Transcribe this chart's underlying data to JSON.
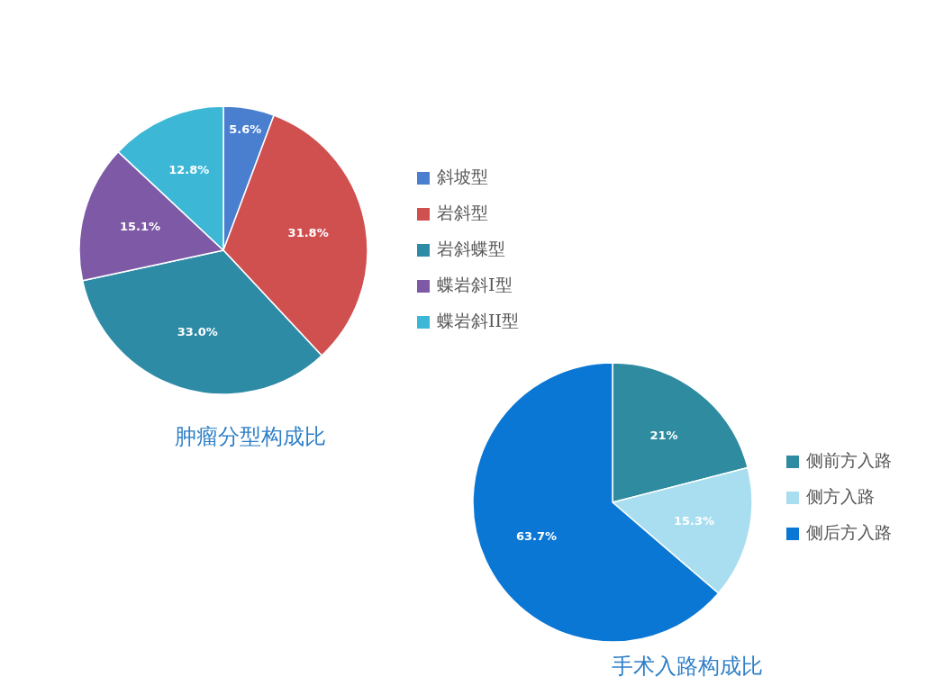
{
  "chart_data": [
    {
      "type": "pie",
      "title": "肿瘤分型构成比",
      "categories": [
        "斜坡型",
        "岩斜型",
        "岩斜蝶型",
        "蝶岩斜I型",
        "蝶岩斜II型"
      ],
      "values": [
        5.6,
        31.8,
        33.0,
        15.1,
        12.8
      ],
      "value_labels": [
        "5.6%",
        "31.8%",
        "33.0%",
        "15.1%",
        "12.8%"
      ],
      "colors": [
        "#4a7fcf",
        "#d05050",
        "#2e8ba6",
        "#7e5aa6",
        "#3cb7d6"
      ],
      "legend": "right"
    },
    {
      "type": "pie",
      "title": "手术入路构成比",
      "categories": [
        "侧前方入路",
        "侧方入路",
        "侧后方入路"
      ],
      "values": [
        21,
        15.3,
        63.7
      ],
      "value_labels": [
        "21%",
        "15.3%",
        "63.7%"
      ],
      "colors": [
        "#2e8ba0",
        "#a8def0",
        "#0b77d4"
      ],
      "legend": "right"
    }
  ]
}
